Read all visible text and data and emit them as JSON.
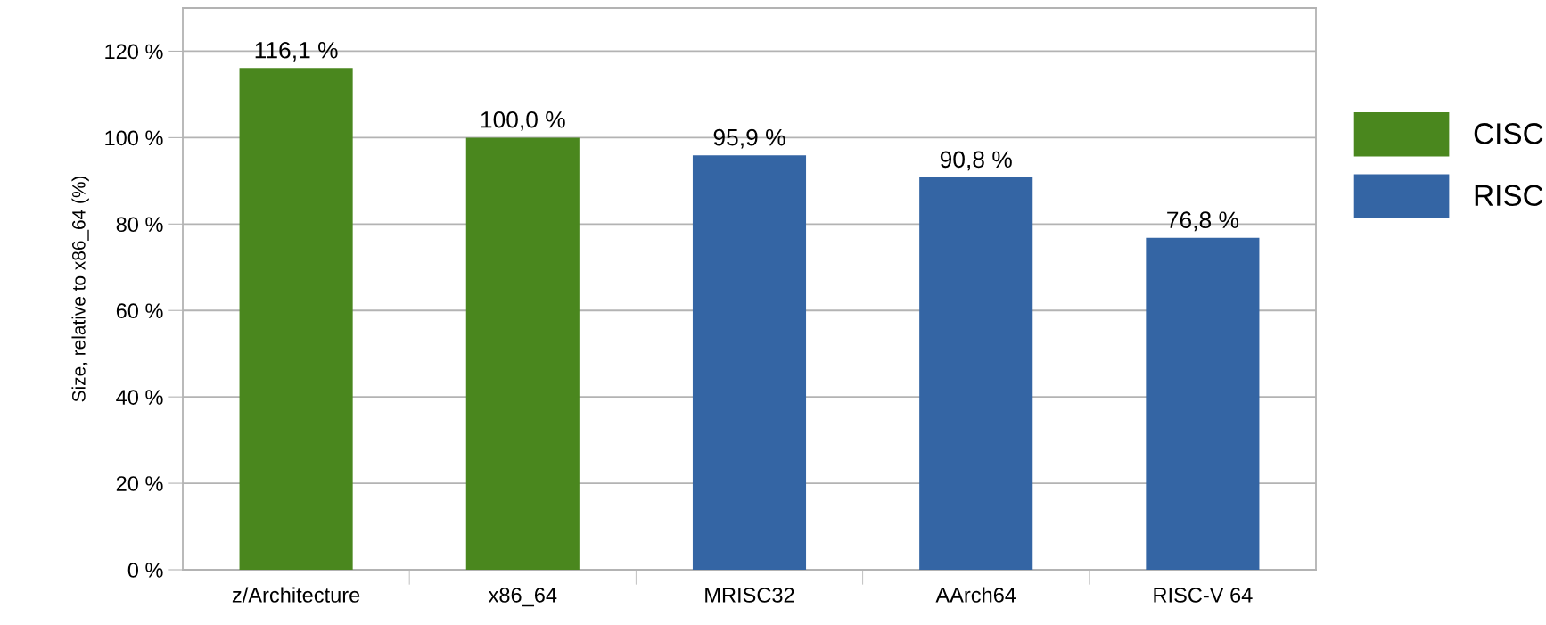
{
  "chart_data": {
    "type": "bar",
    "ylabel": "Size, relative to x86_64 (%)",
    "categories": [
      "z/Architecture",
      "x86_64",
      "MRISC32",
      "AArch64",
      "RISC-V 64"
    ],
    "series": [
      {
        "name": "CISC",
        "color": "#4a871e",
        "values": [
          116.1,
          100.0,
          null,
          null,
          null
        ],
        "value_labels": [
          "116,1 %",
          "100,0 %",
          null,
          null,
          null
        ]
      },
      {
        "name": "RISC",
        "color": "#3465a4",
        "values": [
          null,
          null,
          95.9,
          90.8,
          76.8
        ],
        "value_labels": [
          null,
          null,
          "95,9 %",
          "90,8 %",
          "76,8 %"
        ]
      }
    ],
    "ylim": [
      0,
      130
    ],
    "yticks": [
      {
        "value": 0,
        "label": "0 %"
      },
      {
        "value": 20,
        "label": "20 %"
      },
      {
        "value": 40,
        "label": "40 %"
      },
      {
        "value": 60,
        "label": "60 %"
      },
      {
        "value": 80,
        "label": "80 %"
      },
      {
        "value": 100,
        "label": "100 %"
      },
      {
        "value": 120,
        "label": "120 %"
      }
    ],
    "grid": "y",
    "legend": "right"
  }
}
